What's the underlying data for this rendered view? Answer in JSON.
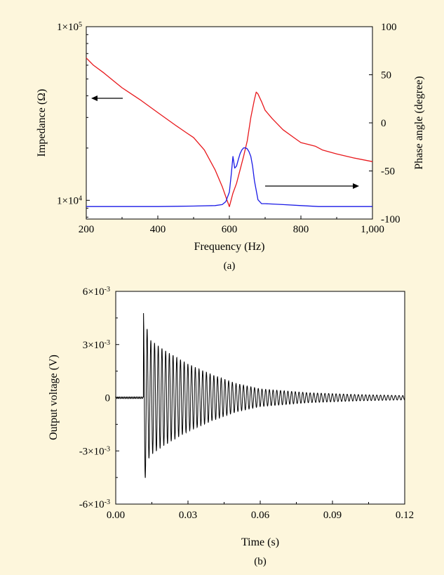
{
  "colors": {
    "background": "#fdf6dc",
    "plot_background": "#ffffff",
    "impedance": "#e8181c",
    "phase": "#1a1ae6",
    "voltage": "#000000"
  },
  "chart_data": [
    {
      "id": "a",
      "type": "line",
      "caption": "(a)",
      "title": "",
      "xlabel": "Frequency (Hz)",
      "ylabel": "Impedance (Ω)",
      "y2label": "Phase angle (degree)",
      "xlim": [
        200,
        1000
      ],
      "xticks": [
        200,
        400,
        600,
        800,
        1000
      ],
      "xtick_labels": [
        "200",
        "400",
        "600",
        "800",
        "1,000"
      ],
      "yscale": "log",
      "ylim": [
        7800,
        100000
      ],
      "yticks": [
        10000,
        100000
      ],
      "ytick_labels": [
        {
          "base": "1×10",
          "exp": "4"
        },
        {
          "base": "1×10",
          "exp": "5"
        }
      ],
      "y2lim": [
        -100,
        100
      ],
      "y2ticks": [
        -100,
        -50,
        0,
        50,
        100
      ],
      "y2tick_labels": [
        "-100",
        "-50",
        "0",
        "50",
        "100"
      ],
      "grid": false,
      "legend": "none",
      "series": [
        {
          "axis": "left",
          "color": "#e8181c",
          "x": [
            200,
            220,
            250,
            280,
            300,
            350,
            400,
            450,
            480,
            500,
            530,
            560,
            580,
            595,
            600,
            610,
            620,
            630,
            640,
            650,
            660,
            670,
            675,
            680,
            690,
            700,
            720,
            750,
            780,
            800,
            820,
            840,
            860,
            900,
            950,
            1000
          ],
          "y": [
            66000,
            60000,
            54000,
            48000,
            44500,
            38000,
            32000,
            27000,
            24500,
            23000,
            19500,
            15000,
            12000,
            9800,
            9200,
            11000,
            12500,
            15000,
            18000,
            22000,
            30000,
            38000,
            42000,
            41000,
            37000,
            33000,
            29500,
            25500,
            23000,
            21500,
            21000,
            20500,
            19500,
            18500,
            17500,
            16700
          ]
        },
        {
          "axis": "right",
          "color": "#1a1ae6",
          "x": [
            200,
            300,
            400,
            500,
            560,
            580,
            590,
            600,
            605,
            610,
            615,
            620,
            625,
            630,
            635,
            640,
            645,
            650,
            655,
            660,
            665,
            670,
            680,
            690,
            700,
            750,
            800,
            850,
            900,
            1000
          ],
          "y": [
            -87,
            -87,
            -87,
            -86.5,
            -86,
            -85,
            -82,
            -72,
            -55,
            -35,
            -47,
            -45,
            -38,
            -32,
            -28,
            -26,
            -26,
            -27,
            -30,
            -35,
            -45,
            -60,
            -80,
            -84,
            -84,
            -85,
            -86,
            -87,
            -87,
            -87
          ]
        }
      ],
      "annotations": [
        {
          "type": "arrow",
          "direction": "left",
          "points_to": "left axis"
        },
        {
          "type": "arrow",
          "direction": "right",
          "points_to": "right axis"
        }
      ]
    },
    {
      "id": "b",
      "type": "line",
      "caption": "(b)",
      "title": "",
      "xlabel": "Time (s)",
      "ylabel": "Output voltage (V)",
      "xlim": [
        0,
        0.12
      ],
      "xticks": [
        0,
        0.03,
        0.06,
        0.09,
        0.12
      ],
      "xtick_labels": [
        "0.00",
        "0.03",
        "0.06",
        "0.09",
        "0.12"
      ],
      "ylim": [
        -0.006,
        0.006
      ],
      "yticks": [
        -0.006,
        -0.003,
        0,
        0.003,
        0.006
      ],
      "ytick_labels": [
        {
          "base": "-6×10",
          "exp": "-3"
        },
        {
          "base": "-3×10",
          "exp": "-3"
        },
        {
          "base": "0",
          "exp": ""
        },
        {
          "base": "3×10",
          "exp": "-3"
        },
        {
          "base": "6×10",
          "exp": "-3"
        }
      ],
      "grid": false,
      "legend": "none",
      "signal": {
        "description_free": true,
        "onset_s": 0.0115,
        "oscillation_hz": 650,
        "peak_positive_v": 0.0048,
        "peak_negative_v": -0.005,
        "envelope_points": [
          {
            "t": 0.0115,
            "a": 0.0048
          },
          {
            "t": 0.014,
            "a": 0.0033
          },
          {
            "t": 0.02,
            "a": 0.0027
          },
          {
            "t": 0.03,
            "a": 0.0019
          },
          {
            "t": 0.04,
            "a": 0.0013
          },
          {
            "t": 0.05,
            "a": 0.0008
          },
          {
            "t": 0.06,
            "a": 0.0005
          },
          {
            "t": 0.08,
            "a": 0.00028
          },
          {
            "t": 0.1,
            "a": 0.00018
          },
          {
            "t": 0.12,
            "a": 0.00012
          }
        ],
        "baseline_noise_v": 5e-05,
        "color": "#000000"
      }
    }
  ]
}
